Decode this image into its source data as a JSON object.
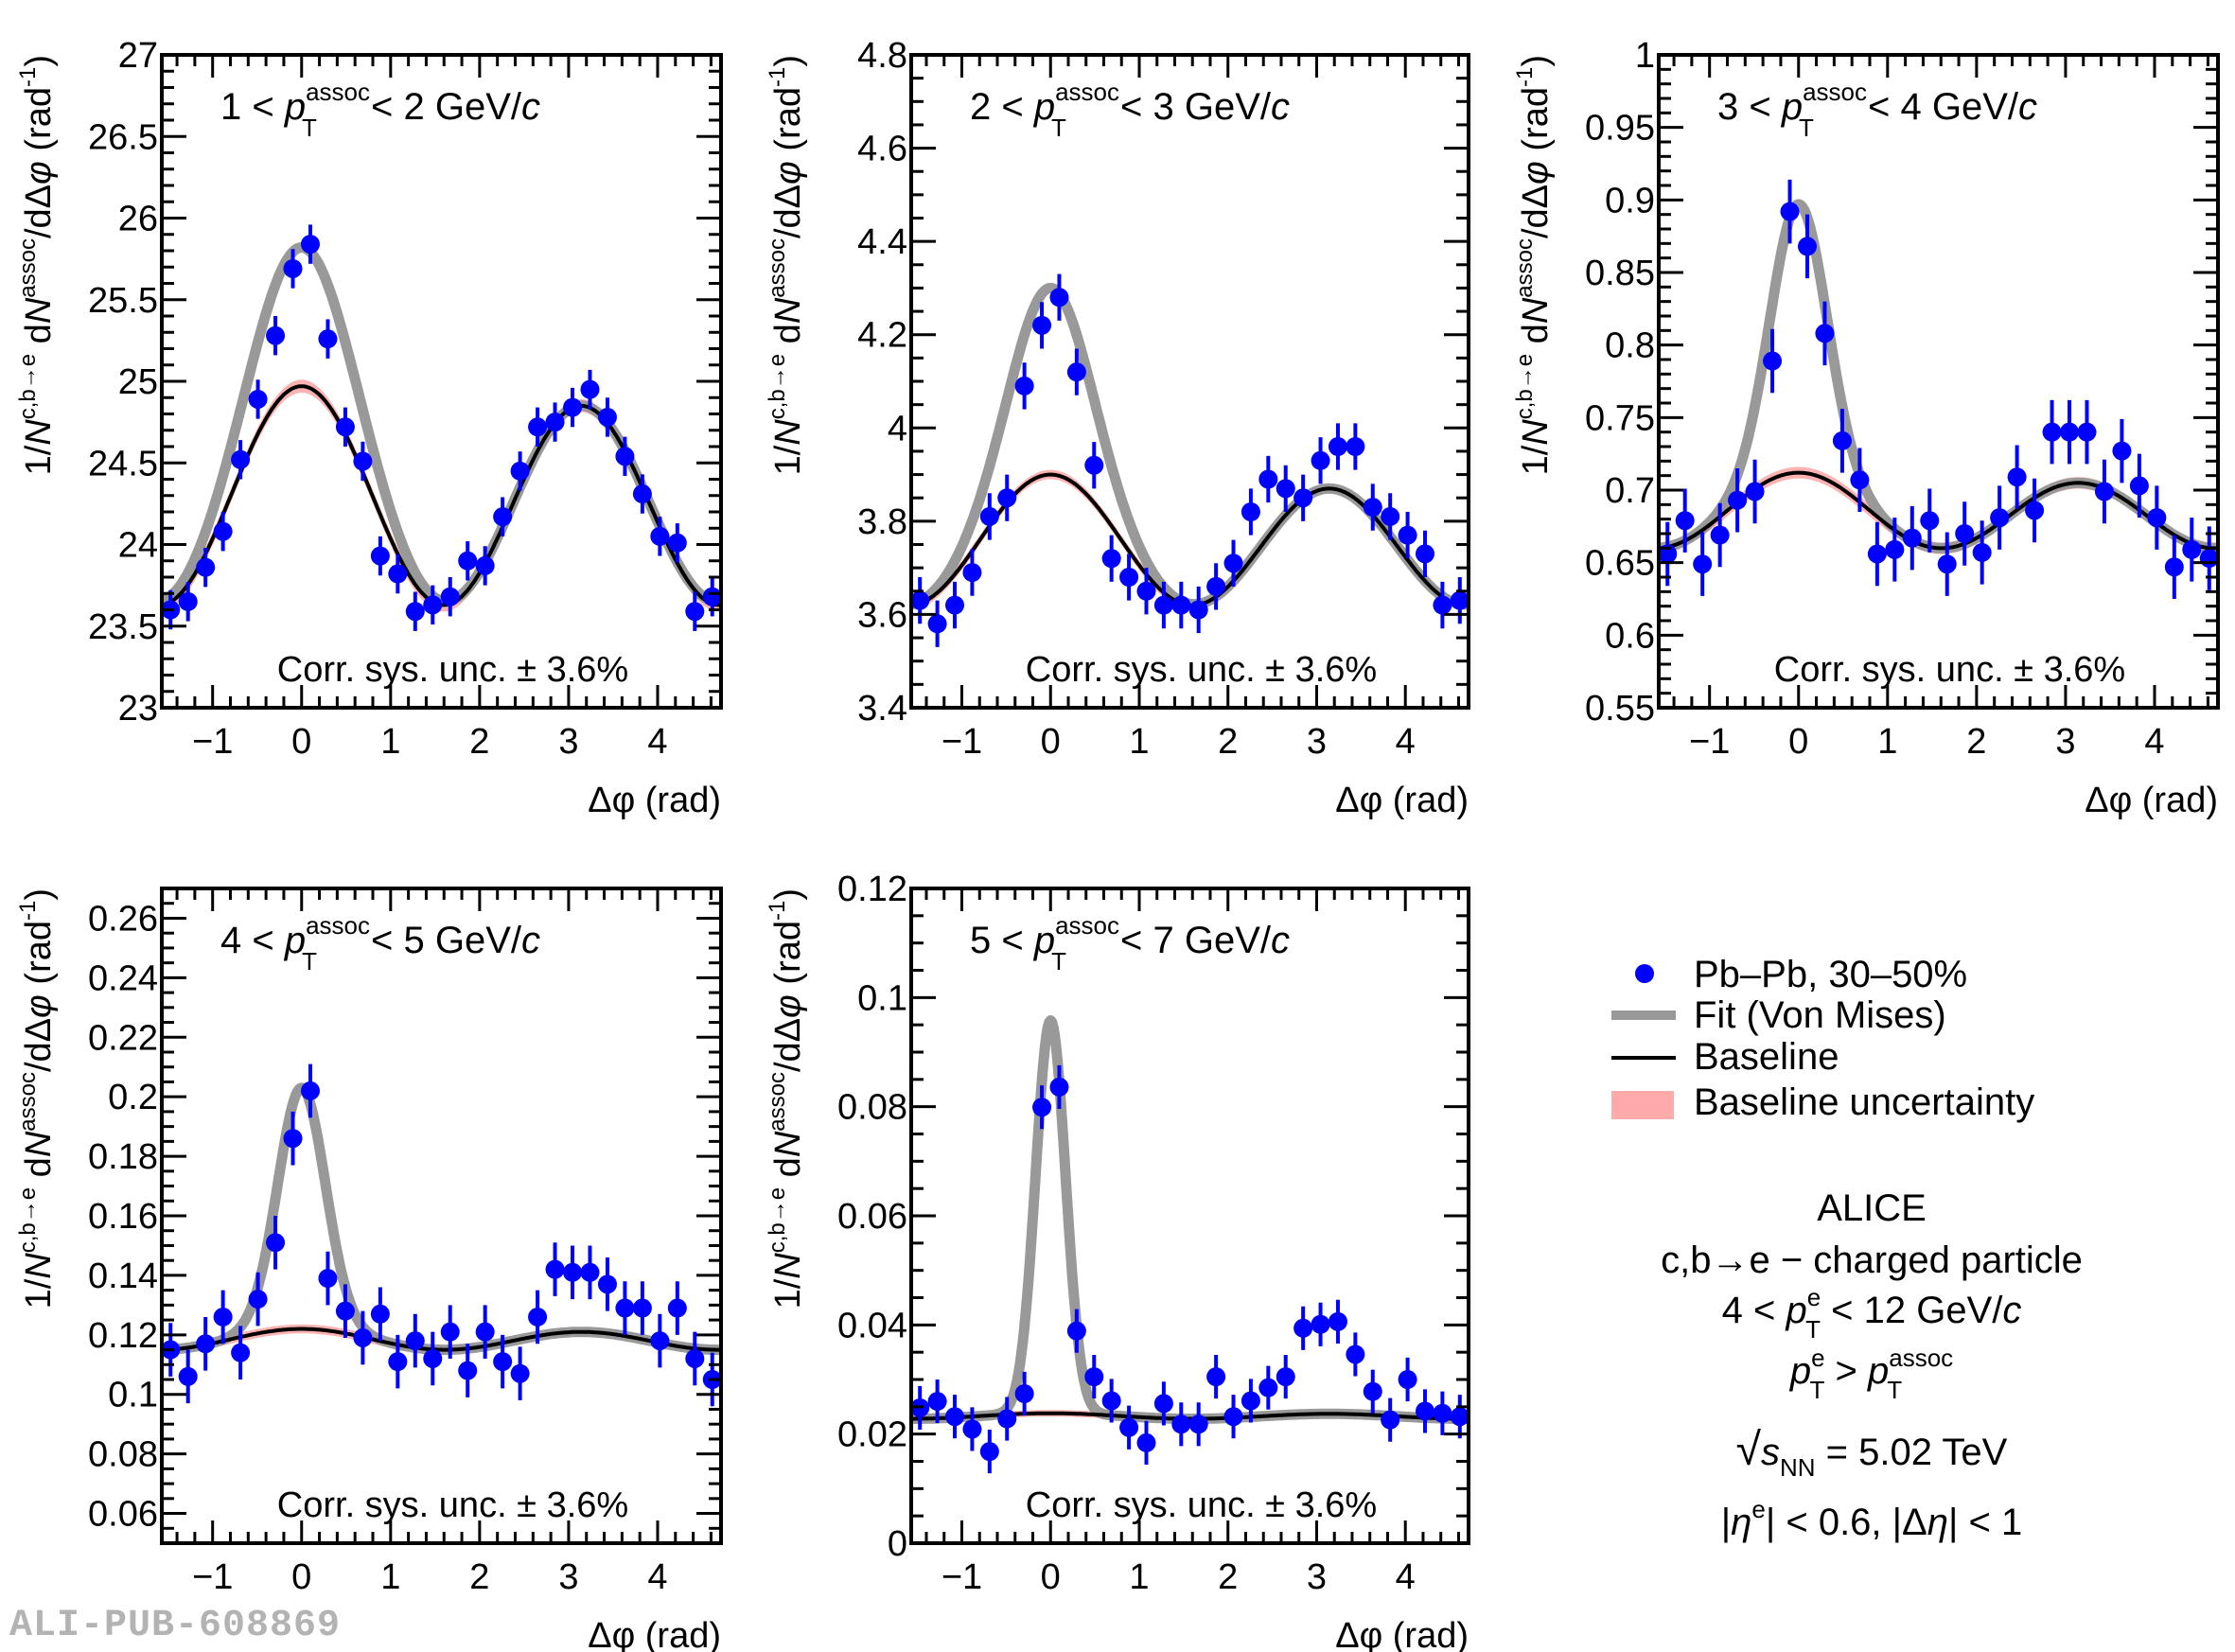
{
  "figure": {
    "watermark": "ALI-PUB-608869",
    "colors": {
      "data": "#0000ff",
      "fit": "#999999",
      "baseline": "#000000",
      "baseline_band": "#ffaaaa"
    }
  },
  "legend": {
    "items": [
      {
        "label": "Pb–Pb, 30–50%",
        "type": "marker"
      },
      {
        "label": "Fit (Von Mises)",
        "type": "thick-line"
      },
      {
        "label": "Baseline",
        "type": "line"
      },
      {
        "label": "Baseline uncertainty",
        "type": "band"
      }
    ]
  },
  "info": {
    "experiment": "ALICE",
    "channel": "c,b→e − charged particle",
    "trigger_pt": "4 < p_T^e < 12 GeV/c",
    "pt_ordering": "p_T^e > p_T^assoc",
    "energy": "√s_NN = 5.02 TeV",
    "eta_cuts": "|η^e| < 0.6, |Δη| < 1"
  },
  "chart_data": [
    {
      "type": "scatter",
      "title": "1 < p_T^assoc < 2 GeV/c",
      "title_parts": {
        "lo": "1",
        "hi": "2"
      },
      "xlabel": "Δφ (rad)",
      "ylabel": "1/N^{c,b→e} dN^{assoc}/dΔφ (rad^-1)",
      "note": "Corr. sys. unc. ± 3.6%",
      "xlim": [
        -1.5708,
        4.7124
      ],
      "ylim": [
        23,
        27
      ],
      "xticks": [
        -1,
        0,
        1,
        2,
        3,
        4
      ],
      "xtick_labels": [
        "−1",
        "0",
        "1",
        "2",
        "3",
        "4"
      ],
      "yticks": [
        23,
        23.5,
        24,
        24.5,
        25,
        25.5,
        26,
        26.5,
        27
      ],
      "ytick_labels": [
        "23",
        "23.5",
        "24",
        "24.5",
        "25",
        "25.5",
        "26",
        "26.5",
        "27"
      ],
      "y_minor_step": 0.1,
      "x_minor_step": 0.2,
      "bins": 32,
      "values": [
        23.6,
        23.65,
        23.86,
        24.08,
        24.52,
        24.89,
        25.28,
        25.69,
        25.84,
        25.26,
        24.72,
        24.51,
        23.93,
        23.82,
        23.59,
        23.63,
        23.68,
        23.9,
        23.87,
        24.17,
        24.45,
        24.72,
        24.75,
        24.84,
        24.95,
        24.78,
        24.54,
        24.31,
        24.05,
        24.01,
        23.59,
        23.68
      ],
      "errors": 0.12,
      "baseline": {
        "c0": 24.27,
        "c1": 0.06,
        "c2": 0.64,
        "band": 0.04
      },
      "fit_peak": {
        "amplitude": 0.85,
        "kappa": 3.5
      }
    },
    {
      "type": "scatter",
      "title": "2 < p_T^assoc < 3 GeV/c",
      "title_parts": {
        "lo": "2",
        "hi": "3"
      },
      "xlabel": "Δφ (rad)",
      "ylabel": "1/N^{c,b→e} dN^{assoc}/dΔφ (rad^-1)",
      "note": "Corr. sys. unc. ± 3.6%",
      "xlim": [
        -1.5708,
        4.7124
      ],
      "ylim": [
        3.4,
        4.8
      ],
      "xticks": [
        -1,
        0,
        1,
        2,
        3,
        4
      ],
      "xtick_labels": [
        "−1",
        "0",
        "1",
        "2",
        "3",
        "4"
      ],
      "yticks": [
        3.4,
        3.6,
        3.8,
        4,
        4.2,
        4.4,
        4.6,
        4.8
      ],
      "ytick_labels": [
        "3.4",
        "3.6",
        "3.8",
        "4",
        "4.2",
        "4.4",
        "4.6",
        "4.8"
      ],
      "y_minor_step": 0.05,
      "x_minor_step": 0.2,
      "bins": 32,
      "values": [
        3.63,
        3.58,
        3.62,
        3.69,
        3.81,
        3.85,
        4.09,
        4.22,
        4.28,
        4.12,
        3.92,
        3.72,
        3.68,
        3.65,
        3.62,
        3.62,
        3.61,
        3.66,
        3.71,
        3.82,
        3.89,
        3.87,
        3.85,
        3.93,
        3.96,
        3.96,
        3.83,
        3.81,
        3.77,
        3.73,
        3.62,
        3.63
      ],
      "errors": 0.05,
      "baseline": {
        "c0": 3.7525,
        "c1": 0.015,
        "c2": 0.1325,
        "band": 0.01
      },
      "fit_peak": {
        "amplitude": 0.4,
        "kappa": 5
      }
    },
    {
      "type": "scatter",
      "title": "3 < p_T^assoc < 4 GeV/c",
      "title_parts": {
        "lo": "3",
        "hi": "4"
      },
      "xlabel": "Δφ (rad)",
      "ylabel": "1/N^{c,b→e} dN^{assoc}/dΔφ (rad^-1)",
      "note": "Corr. sys. unc. ± 3.6%",
      "xlim": [
        -1.5708,
        4.7124
      ],
      "ylim": [
        0.55,
        1.0
      ],
      "xticks": [
        -1,
        0,
        1,
        2,
        3,
        4
      ],
      "xtick_labels": [
        "−1",
        "0",
        "1",
        "2",
        "3",
        "4"
      ],
      "yticks": [
        0.55,
        0.6,
        0.65,
        0.7,
        0.75,
        0.8,
        0.85,
        0.9,
        0.95,
        1.0
      ],
      "ytick_labels": [
        "0.55",
        "0.6",
        "0.65",
        "0.7",
        "0.75",
        "0.8",
        "0.85",
        "0.9",
        "0.95",
        "1"
      ],
      "y_minor_step": 0.01,
      "x_minor_step": 0.2,
      "bins": 32,
      "values": [
        0.656,
        0.679,
        0.649,
        0.669,
        0.693,
        0.699,
        0.789,
        0.892,
        0.868,
        0.808,
        0.734,
        0.707,
        0.656,
        0.659,
        0.667,
        0.679,
        0.649,
        0.67,
        0.657,
        0.681,
        0.709,
        0.686,
        0.74,
        0.74,
        0.74,
        0.699,
        0.727,
        0.703,
        0.681,
        0.647,
        0.659,
        0.653
      ],
      "errors": 0.022,
      "baseline": {
        "c0": 0.68425,
        "c1": 0.0035,
        "c2": 0.02425,
        "band": 0.004
      },
      "fit_peak": {
        "amplitude": 0.185,
        "kappa": 10
      }
    },
    {
      "type": "scatter",
      "title": "4 < p_T^assoc < 5 GeV/c",
      "title_parts": {
        "lo": "4",
        "hi": "5"
      },
      "xlabel": "Δφ (rad)",
      "ylabel": "1/N^{c,b→e} dN^{assoc}/dΔφ (rad^-1)",
      "note": "Corr. sys. unc. ± 3.6%",
      "xlim": [
        -1.5708,
        4.7124
      ],
      "ylim": [
        0.05,
        0.27
      ],
      "xticks": [
        -1,
        0,
        1,
        2,
        3,
        4
      ],
      "xtick_labels": [
        "−1",
        "0",
        "1",
        "2",
        "3",
        "4"
      ],
      "yticks": [
        0.06,
        0.08,
        0.1,
        0.12,
        0.14,
        0.16,
        0.18,
        0.2,
        0.22,
        0.24,
        0.26
      ],
      "ytick_labels": [
        "0.06",
        "0.08",
        "0.1",
        "0.12",
        "0.14",
        "0.16",
        "0.18",
        "0.2",
        "0.22",
        "0.24",
        "0.26"
      ],
      "y_minor_step": 0.005,
      "x_minor_step": 0.2,
      "bins": 32,
      "values": [
        0.115,
        0.106,
        0.117,
        0.126,
        0.114,
        0.132,
        0.151,
        0.186,
        0.202,
        0.139,
        0.128,
        0.119,
        0.127,
        0.111,
        0.118,
        0.112,
        0.121,
        0.108,
        0.121,
        0.111,
        0.107,
        0.126,
        0.142,
        0.141,
        0.141,
        0.137,
        0.129,
        0.129,
        0.118,
        0.129,
        0.112,
        0.105
      ],
      "errors": 0.009,
      "baseline": {
        "c0": 0.11825,
        "c1": 0.0005,
        "c2": 0.00325,
        "band": 0.0015
      },
      "fit_peak": {
        "amplitude": 0.081,
        "kappa": 14
      }
    },
    {
      "type": "scatter",
      "title": "5 < p_T^assoc < 7 GeV/c",
      "title_parts": {
        "lo": "5",
        "hi": "7"
      },
      "xlabel": "Δφ (rad)",
      "ylabel": "1/N^{c,b→e} dN^{assoc}/dΔφ (rad^-1)",
      "note": "Corr. sys. unc. ± 3.6%",
      "xlim": [
        -1.5708,
        4.7124
      ],
      "ylim": [
        0,
        0.12
      ],
      "xticks": [
        -1,
        0,
        1,
        2,
        3,
        4
      ],
      "xtick_labels": [
        "−1",
        "0",
        "1",
        "2",
        "3",
        "4"
      ],
      "yticks": [
        0,
        0.02,
        0.04,
        0.06,
        0.08,
        0.1,
        0.12
      ],
      "ytick_labels": [
        "0",
        "0.02",
        "0.04",
        "0.06",
        "0.08",
        "0.1",
        "0.12"
      ],
      "y_minor_step": 0.005,
      "x_minor_step": 0.2,
      "bins": 32,
      "values": [
        0.0248,
        0.026,
        0.0232,
        0.0209,
        0.0168,
        0.0228,
        0.0274,
        0.0799,
        0.0836,
        0.0389,
        0.0305,
        0.0261,
        0.0212,
        0.0184,
        0.0256,
        0.0218,
        0.0218,
        0.0305,
        0.0232,
        0.0261,
        0.0285,
        0.0305,
        0.0394,
        0.0401,
        0.0406,
        0.0346,
        0.0278,
        0.0226,
        0.03,
        0.0242,
        0.0238,
        0.0232
      ],
      "errors": 0.004,
      "baseline": {
        "c0": 0.02328,
        "c1": 5e-05,
        "c2": 0.00048,
        "band": 0.0006
      },
      "fit_peak": {
        "amplitude": 0.072,
        "kappa": 35
      }
    }
  ]
}
